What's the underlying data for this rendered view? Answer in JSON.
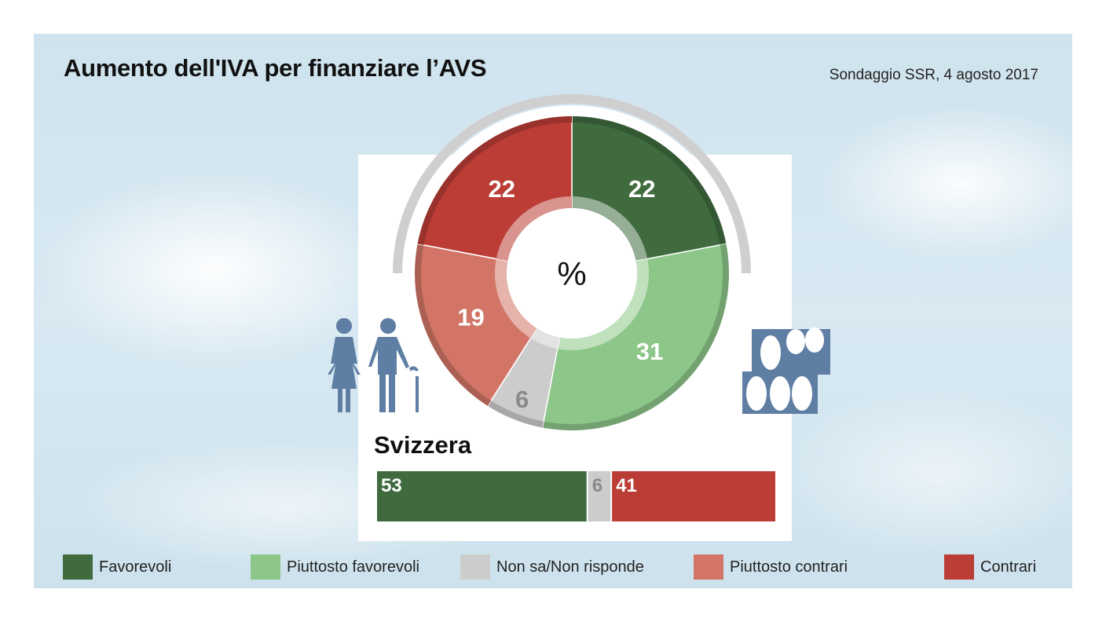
{
  "header": {
    "title": "Aumento dell'IVA per finanziare l’AVS",
    "source": "Sondaggio SSR, 4 agosto 2017"
  },
  "colors": {
    "favorevoli": "#3f6b3f",
    "piuttosto_favorevoli": "#8cc688",
    "non_sa": "#cccccc",
    "piuttosto_contrari": "#d27566",
    "contrari": "#bb3d36",
    "icon_blue": "#5f7ea3"
  },
  "icons": [
    "elderly-couple-icon",
    "ballot-papers-icon"
  ],
  "chart_data": [
    {
      "type": "pie",
      "variant": "donut",
      "center_label": "%",
      "slices": [
        {
          "label": "Favorevoli",
          "value": 22,
          "color": "#3f6b3f"
        },
        {
          "label": "Piuttosto favorevoli",
          "value": 31,
          "color": "#8cc688"
        },
        {
          "label": "Non sa/Non risponde",
          "value": 6,
          "color": "#cccccc"
        },
        {
          "label": "Piuttosto contrari",
          "value": 19,
          "color": "#d27566"
        },
        {
          "label": "Contrari",
          "value": 22,
          "color": "#bb3d36"
        }
      ]
    },
    {
      "type": "bar",
      "orientation": "horizontal-stacked",
      "title": "Svizzera",
      "segments": [
        {
          "value": 53,
          "color": "#3f6b3f"
        },
        {
          "value": 6,
          "color": "#cccccc"
        },
        {
          "value": 41,
          "color": "#bb3d36"
        }
      ]
    }
  ],
  "legend": [
    {
      "label": "Favorevoli",
      "color": "#3f6b3f"
    },
    {
      "label": "Piuttosto favorevoli",
      "color": "#8cc688"
    },
    {
      "label": "Non sa/Non risponde",
      "color": "#cccccc"
    },
    {
      "label": "Piuttosto contrari",
      "color": "#d27566"
    },
    {
      "label": "Contrari",
      "color": "#bb3d36"
    }
  ]
}
